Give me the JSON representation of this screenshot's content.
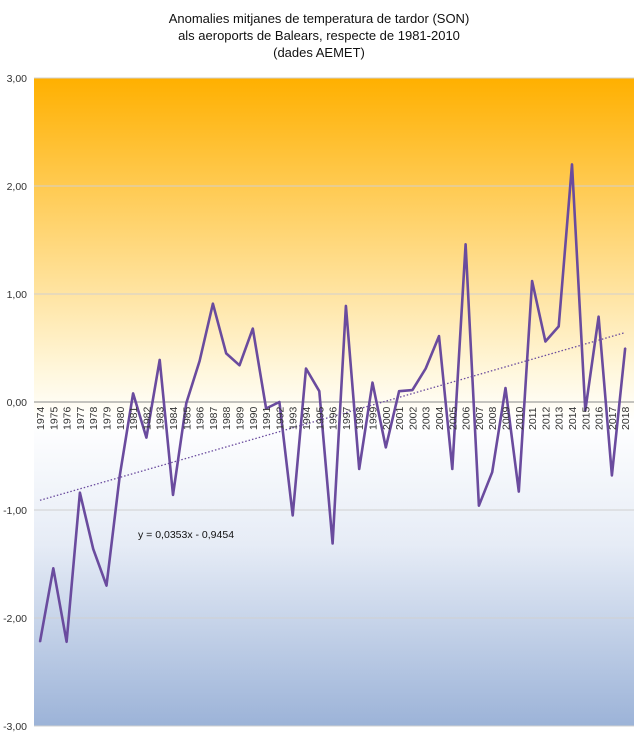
{
  "chart_data": {
    "type": "line",
    "title_lines": [
      "Anomalies mitjanes de temperatura de tardor (SON)",
      "als aeroports de Balears, respecte de 1981-2010",
      "(dades AEMET)"
    ],
    "xlabel": "",
    "ylabel": "",
    "ylim": [
      -3,
      3
    ],
    "yticks": [
      "-3,00",
      "-2,00",
      "-1,00",
      "0,00",
      "1,00",
      "2,00",
      "3,00"
    ],
    "grid": true,
    "legend": "none",
    "x": [
      "1974",
      "1975",
      "1976",
      "1977",
      "1978",
      "1979",
      "1980",
      "1981",
      "1982",
      "1983",
      "1984",
      "1985",
      "1986",
      "1987",
      "1988",
      "1989",
      "1990",
      "1991",
      "1992",
      "1993",
      "1994",
      "1995",
      "1996",
      "1997",
      "1998",
      "1999",
      "2000",
      "2001",
      "2002",
      "2003",
      "2004",
      "2005",
      "2006",
      "2007",
      "2008",
      "2009",
      "2010",
      "2011",
      "2012",
      "2013",
      "2014",
      "2015",
      "2016",
      "2017",
      "2018"
    ],
    "series": [
      {
        "values": [
          -2.22,
          -1.54,
          -2.22,
          -0.84,
          -1.36,
          -1.7,
          -0.68,
          0.08,
          -0.33,
          0.39,
          -0.86,
          -0.01,
          0.38,
          0.91,
          0.45,
          0.34,
          0.68,
          -0.06,
          0.0,
          -1.05,
          0.31,
          0.1,
          -1.31,
          0.89,
          -0.62,
          0.18,
          -0.42,
          0.1,
          0.11,
          0.31,
          0.61,
          -0.62,
          1.46,
          -0.96,
          -0.65,
          0.13,
          -0.83,
          1.12,
          0.56,
          0.7,
          2.2,
          -0.08,
          0.79,
          -0.68,
          0.5
        ],
        "color": "#6a4b9e"
      }
    ],
    "trendline": {
      "label": "y = 0,0353x - 0,9454",
      "slope": 0.0353,
      "intercept": -0.9454,
      "color": "#6a4b9e",
      "style": "dotted"
    },
    "background_gradient": [
      "#ffb000",
      "#fff8e0",
      "#ffffff",
      "#e6ecf6",
      "#9cb3d8"
    ]
  }
}
